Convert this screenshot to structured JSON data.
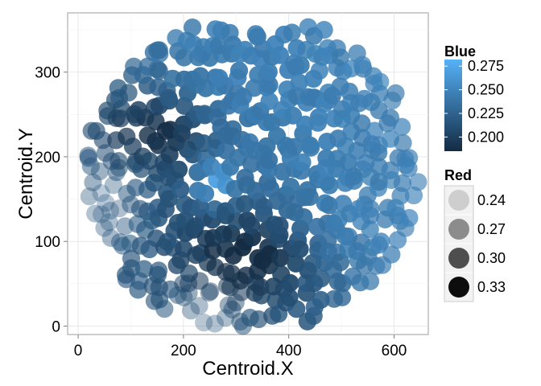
{
  "chart_data": {
    "type": "scatter",
    "title": "",
    "xlabel": "Centroid.X",
    "ylabel": "Centroid.Y",
    "xlim": [
      -20,
      665
    ],
    "ylim": [
      -10,
      370
    ],
    "x_ticks": [
      0,
      200,
      400,
      600
    ],
    "y_ticks": [
      0,
      100,
      200,
      300
    ],
    "grid": true,
    "legend_placement": "right",
    "color_legend": {
      "title": "Blue",
      "min": 0.185,
      "max": 0.282,
      "low_color": "#132b43",
      "high_color": "#56b1f7",
      "breaks": [
        0.2,
        0.225,
        0.25,
        0.275
      ]
    },
    "alpha_legend": {
      "title": "Red",
      "breaks": [
        0.24,
        0.27,
        0.3,
        0.33
      ],
      "alpha_range": [
        0.15,
        0.95
      ]
    },
    "point_radius_data_units": 17,
    "data_sampling": {
      "shape": "disc",
      "center": [
        330,
        180
      ],
      "radius": 320,
      "spacing": 19,
      "count_note": "dense point cloud approximated by a grid of blobs"
    }
  }
}
